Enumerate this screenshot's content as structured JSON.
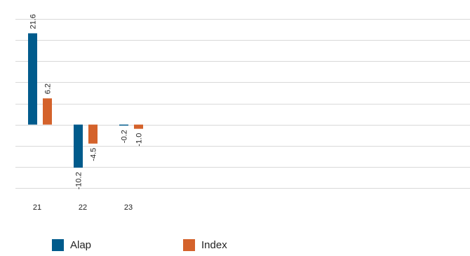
{
  "chart_data": {
    "type": "bar",
    "categories": [
      "21",
      "22",
      "23"
    ],
    "series": [
      {
        "name": "Alap",
        "values": [
          21.6,
          -10.2,
          -0.2
        ],
        "labels": [
          "21.6",
          "-10.2",
          "-0.2"
        ],
        "color": "#005b8c"
      },
      {
        "name": "Index",
        "values": [
          6.2,
          -4.5,
          -1.0
        ],
        "labels": [
          "6.2",
          "-4.5",
          "-1.0"
        ],
        "color": "#d4622b"
      }
    ],
    "ylim": [
      -15,
      25
    ],
    "gridlines": [
      25,
      20,
      15,
      10,
      5,
      0,
      -5,
      -10,
      -15
    ],
    "grid": true,
    "legend_position": "bottom-left",
    "title": "",
    "xlabel": "",
    "ylabel": ""
  }
}
